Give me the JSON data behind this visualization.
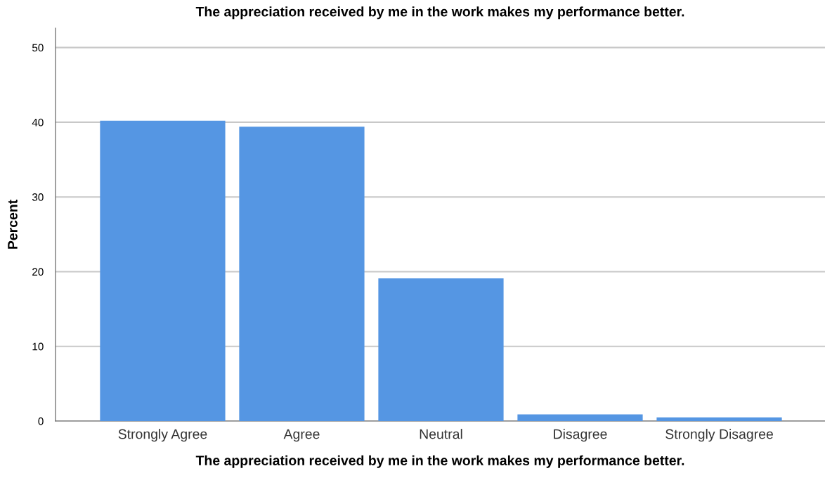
{
  "chart_data": {
    "type": "bar",
    "title": "The appreciation received by me in the work makes my performance better.",
    "xlabel": "The appreciation received by me in the work makes my performance better.",
    "ylabel": "Percent",
    "categories": [
      "Strongly Agree",
      "Agree",
      "Neutral",
      "Disagree",
      "Strongly Disagree"
    ],
    "values": [
      40.2,
      39.4,
      19.1,
      0.9,
      0.5
    ],
    "color": "#5596e3",
    "ylim": [
      0,
      52.6
    ],
    "yticks": [
      0,
      10,
      20,
      30,
      40,
      50
    ],
    "grid": "y"
  }
}
